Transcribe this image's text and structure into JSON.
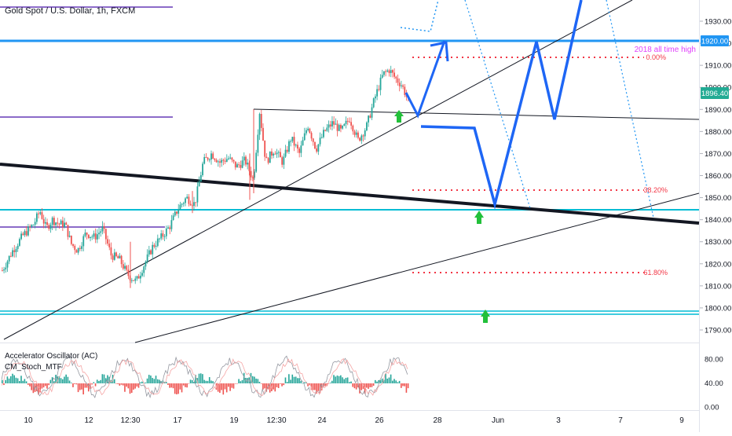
{
  "header": {
    "symbol_title": "Gold Spot / U.S. Dollar, 1h, FXCM"
  },
  "colors": {
    "up_candle": "#26a69a",
    "down_candle": "#ef5350",
    "price_badge": "#22ab94",
    "resistance_line": "#2196f3",
    "cyan_line": "#00bcd4",
    "purple_line": "#673ab7",
    "fib_line": "#f23645",
    "annotation_pink": "#e040fb",
    "arrow_green": "#22c03a",
    "path_blue": "#1e66f5"
  },
  "annotations": {
    "ath_label": "2018 all time high",
    "fib_0": "0.00%",
    "fib_382": "38.20%",
    "fib_618": "61.80%"
  },
  "price_badge": {
    "value": "1896.40"
  },
  "indicators": {
    "ac_label": "Accelerator Oscillator (AC)",
    "stoch_label": "CM_Stoch_MTF"
  },
  "chart_data": [
    {
      "type": "candlestick",
      "title": "Gold Spot / U.S. Dollar, 1h, FXCM",
      "ylim": [
        1785,
        1940
      ],
      "y_ticks": [
        "1930.00",
        "1920.00",
        "1910.00",
        "1900.00",
        "1890.00",
        "1880.00",
        "1870.00",
        "1860.00",
        "1850.00",
        "1840.00",
        "1830.00",
        "1820.00",
        "1810.00",
        "1800.00",
        "1790.00"
      ],
      "x_ticks": [
        "10",
        "12",
        "12:30",
        "17",
        "19",
        "12:30",
        "24",
        "26",
        "28",
        "Jun",
        "3",
        "7",
        "9"
      ],
      "levels": {
        "all_time_high": 1920,
        "support_cyan_mid": 1845,
        "support_cyan_low": 1798,
        "fib_0": 1913.5,
        "fib_38_2": 1853.5,
        "fib_61_8": 1816,
        "current_price": 1896.4
      },
      "price_path": [
        [
          0,
          1817
        ],
        [
          5,
          1826
        ],
        [
          10,
          1833
        ],
        [
          15,
          1838
        ],
        [
          18,
          1844
        ],
        [
          21,
          1836
        ],
        [
          24,
          1840
        ],
        [
          27,
          1838
        ],
        [
          30,
          1838
        ],
        [
          33,
          1829
        ],
        [
          36,
          1826
        ],
        [
          40,
          1834
        ],
        [
          44,
          1832
        ],
        [
          48,
          1836
        ],
        [
          52,
          1824
        ],
        [
          56,
          1822
        ],
        [
          60,
          1815
        ],
        [
          64,
          1812
        ],
        [
          68,
          1820
        ],
        [
          72,
          1828
        ],
        [
          76,
          1832
        ],
        [
          80,
          1837
        ],
        [
          84,
          1845
        ],
        [
          88,
          1850
        ],
        [
          92,
          1847
        ],
        [
          96,
          1866
        ],
        [
          100,
          1870
        ],
        [
          104,
          1866
        ],
        [
          108,
          1868
        ],
        [
          112,
          1864
        ],
        [
          116,
          1867
        ],
        [
          120,
          1858
        ],
        [
          123,
          1889
        ],
        [
          126,
          1866
        ],
        [
          130,
          1872
        ],
        [
          134,
          1866
        ],
        [
          138,
          1877
        ],
        [
          142,
          1870
        ],
        [
          146,
          1883
        ],
        [
          150,
          1872
        ],
        [
          154,
          1880
        ],
        [
          158,
          1884
        ],
        [
          162,
          1880
        ],
        [
          166,
          1886
        ],
        [
          170,
          1876
        ],
        [
          174,
          1882
        ],
        [
          178,
          1895
        ],
        [
          182,
          1906
        ],
        [
          185,
          1908
        ],
        [
          188,
          1904
        ],
        [
          191,
          1901
        ],
        [
          194,
          1894
        ]
      ]
    },
    {
      "type": "bar",
      "title": "Accelerator Oscillator (AC)",
      "ylim": [
        0,
        100
      ],
      "y_ticks": [
        "80.00",
        "40.00",
        "0.00"
      ]
    }
  ]
}
